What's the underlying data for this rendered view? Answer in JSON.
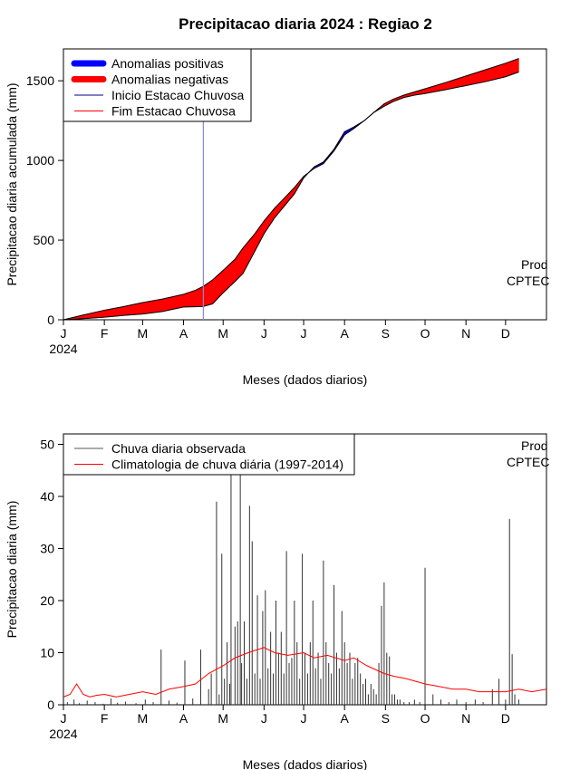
{
  "title": "Precipitacao diaria 2024 : Regiao 2",
  "chart_data": [
    {
      "type": "area",
      "title": "Precipitacao diaria 2024 : Regiao 2",
      "xlabel": "Meses (dados diarios)",
      "ylabel": "Precipitacao diaria acumulada (mm)",
      "x_ticks": [
        "J",
        "F",
        "M",
        "A",
        "M",
        "J",
        "J",
        "A",
        "S",
        "O",
        "N",
        "D"
      ],
      "year_label": "2024",
      "y_ticks": [
        0,
        500,
        1000,
        1500
      ],
      "xlim": [
        0,
        366
      ],
      "ylim": [
        0,
        1700
      ],
      "legend_position": "top-left",
      "legend": [
        {
          "label": "Anomalias positivas",
          "color": "#0000ff"
        },
        {
          "label": "Anomalias negativas",
          "color": "#ff0000"
        },
        {
          "label": "Inicio Estacao Chuvosa",
          "color": "#00008b"
        },
        {
          "label": "Fim Estacao Chuvosa",
          "color": "#ff0000"
        }
      ],
      "rainy_season_start_day": 106,
      "observed_cumulative": {
        "x": [
          0,
          15,
          31,
          45,
          60,
          75,
          91,
          100,
          106,
          113,
          121,
          130,
          136,
          145,
          152,
          160,
          167,
          175,
          182,
          190,
          197,
          205,
          213,
          220,
          228,
          235,
          243,
          250,
          258,
          266,
          274,
          290,
          305,
          320,
          335,
          345
        ],
        "y": [
          0,
          7,
          16,
          27,
          36,
          52,
          80,
          82,
          84,
          100,
          170,
          240,
          290,
          430,
          540,
          640,
          710,
          790,
          890,
          960,
          990,
          1070,
          1180,
          1210,
          1250,
          1300,
          1340,
          1370,
          1395,
          1410,
          1420,
          1445,
          1470,
          1495,
          1525,
          1555
        ]
      },
      "climatology_cumulative": {
        "x": [
          0,
          15,
          31,
          45,
          60,
          75,
          91,
          100,
          106,
          113,
          121,
          130,
          136,
          145,
          152,
          160,
          167,
          175,
          182,
          190,
          197,
          205,
          213,
          220,
          228,
          235,
          243,
          250,
          258,
          266,
          274,
          290,
          305,
          320,
          335,
          345
        ],
        "y": [
          0,
          30,
          60,
          82,
          108,
          130,
          160,
          185,
          210,
          250,
          310,
          380,
          450,
          540,
          620,
          700,
          760,
          830,
          900,
          950,
          980,
          1060,
          1160,
          1200,
          1250,
          1300,
          1355,
          1385,
          1410,
          1430,
          1450,
          1490,
          1530,
          1570,
          1610,
          1640
        ]
      },
      "watermark": "Prod\nCPTEC"
    },
    {
      "type": "bar",
      "xlabel": "Meses (dados diarios)",
      "ylabel": "Precipitacao diaria (mm)",
      "x_ticks": [
        "J",
        "F",
        "M",
        "A",
        "M",
        "J",
        "J",
        "A",
        "S",
        "O",
        "N",
        "D"
      ],
      "year_label": "2024",
      "y_ticks": [
        0,
        10,
        20,
        30,
        40,
        50
      ],
      "xlim": [
        0,
        366
      ],
      "ylim": [
        0,
        52
      ],
      "legend_position": "top-left",
      "legend": [
        {
          "label": "Chuva diaria observada",
          "color": "#555555"
        },
        {
          "label": "Climatologia de chuva diária (1997-2014)",
          "color": "#ff0000"
        }
      ],
      "daily_observed": {
        "day": [
          3,
          8,
          12,
          18,
          24,
          30,
          36,
          41,
          47,
          55,
          62,
          68,
          74,
          80,
          86,
          92,
          98,
          104,
          110,
          112,
          116,
          118,
          120,
          122,
          124,
          126,
          127,
          130,
          132,
          134,
          135,
          137,
          139,
          141,
          143,
          145,
          147,
          149,
          151,
          153,
          155,
          157,
          159,
          161,
          163,
          165,
          167,
          169,
          171,
          173,
          175,
          177,
          179,
          181,
          183,
          185,
          187,
          189,
          191,
          193,
          195,
          197,
          199,
          201,
          203,
          205,
          207,
          209,
          211,
          213,
          215,
          217,
          219,
          221,
          223,
          225,
          227,
          229,
          231,
          233,
          235,
          237,
          239,
          241,
          243,
          245,
          247,
          249,
          251,
          253,
          255,
          258,
          262,
          266,
          270,
          274,
          280,
          286,
          292,
          298,
          305,
          312,
          318,
          325,
          330,
          335,
          338,
          340,
          342,
          345
        ],
        "mm": [
          0.5,
          1.0,
          0.3,
          0.8,
          0.5,
          0.2,
          1.2,
          0.4,
          0.6,
          0.3,
          1.0,
          0.5,
          10.6,
          0.8,
          0.4,
          8.5,
          1.2,
          10.6,
          3.0,
          6.0,
          39.0,
          2.0,
          29.0,
          5.0,
          12.0,
          4.0,
          45.0,
          15.0,
          16.0,
          45.0,
          8.0,
          16.0,
          5.0,
          38.2,
          31.4,
          6.0,
          21.0,
          5.0,
          18.0,
          22.0,
          7.0,
          14.0,
          6.0,
          20.0,
          10.0,
          14.0,
          6.0,
          29.5,
          8.0,
          9.0,
          20.0,
          12.0,
          5.0,
          29.0,
          10.0,
          6.0,
          12.0,
          20.0,
          7.0,
          10.0,
          5.0,
          27.7,
          12.0,
          8.0,
          6.0,
          23.0,
          10.0,
          7.0,
          18.0,
          12.0,
          8.0,
          10.0,
          5.0,
          8.0,
          9.0,
          6.0,
          4.0,
          5.0,
          2.0,
          4.0,
          3.0,
          2.0,
          8.0,
          19.0,
          23.5,
          10.0,
          9.3,
          2.0,
          2.0,
          1.0,
          1.0,
          0.5,
          0.5,
          1.0,
          0.5,
          26.3,
          2.0,
          1.0,
          0.5,
          1.0,
          0.5,
          1.0,
          0.5,
          3.0,
          5.0,
          1.0,
          35.7,
          9.7,
          2.0,
          1.0
        ]
      },
      "climatology_daily": {
        "day": [
          0,
          5,
          10,
          15,
          20,
          25,
          31,
          40,
          50,
          60,
          70,
          80,
          91,
          100,
          110,
          121,
          130,
          140,
          152,
          160,
          170,
          182,
          190,
          200,
          213,
          220,
          230,
          243,
          250,
          260,
          274,
          285,
          295,
          305,
          315,
          325,
          335,
          345,
          355,
          366
        ],
        "mm": [
          1.5,
          2.0,
          4.0,
          2.0,
          1.5,
          1.8,
          2.0,
          1.5,
          2.0,
          2.5,
          2.0,
          3.0,
          3.5,
          4.0,
          6.0,
          7.5,
          9.0,
          10.0,
          11.0,
          10.0,
          9.5,
          10.0,
          9.0,
          9.5,
          8.5,
          9.0,
          7.5,
          6.0,
          5.5,
          5.0,
          4.0,
          3.5,
          3.0,
          3.0,
          2.5,
          2.5,
          2.5,
          3.0,
          2.5,
          3.0
        ]
      },
      "watermark": "Prod\nCPTEC"
    }
  ]
}
